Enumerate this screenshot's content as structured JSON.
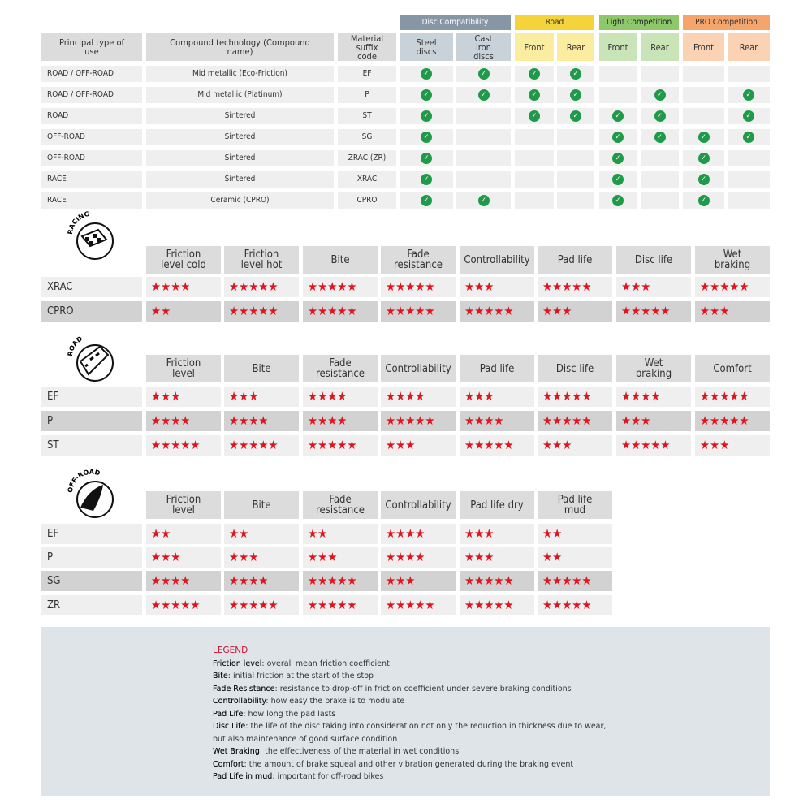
{
  "colors": {
    "check": "#1f9a4a",
    "star": "#e0141e",
    "disc": "#8796a5",
    "disc_sub": "#c9d1d9",
    "road": "#f5d33a",
    "road_sub": "#fbeda0",
    "light": "#8ec86a",
    "light_sub": "#c9e4b7",
    "pro": "#f5a56c",
    "pro_sub": "#fbd2b4"
  },
  "compat": {
    "groups": [
      "Disc Compatibility",
      "Road",
      "Light Competition",
      "PRO Competition"
    ],
    "headers": [
      "Principal type of use",
      "Compound technology (Compound name)",
      "Material suffix code",
      "Steel discs",
      "Cast iron discs",
      "Front",
      "Rear",
      "Front",
      "Rear",
      "Front",
      "Rear"
    ],
    "rows": [
      {
        "use": "ROAD / OFF-ROAD",
        "compound": "Mid metallic (Eco-Friction)",
        "code": "EF",
        "checks": [
          1,
          1,
          1,
          1,
          0,
          0,
          0,
          0
        ]
      },
      {
        "use": "ROAD / OFF-ROAD",
        "compound": "Mid metallic (Platinum)",
        "code": "P",
        "checks": [
          1,
          1,
          1,
          1,
          0,
          1,
          0,
          1
        ]
      },
      {
        "use": "ROAD",
        "compound": "Sintered",
        "code": "ST",
        "checks": [
          1,
          0,
          1,
          1,
          1,
          1,
          0,
          1
        ]
      },
      {
        "use": "OFF-ROAD",
        "compound": "Sintered",
        "code": "SG",
        "checks": [
          1,
          0,
          0,
          0,
          1,
          1,
          1,
          1
        ]
      },
      {
        "use": "OFF-ROAD",
        "compound": "Sintered",
        "code": "ZRAC (ZR)",
        "checks": [
          1,
          0,
          0,
          0,
          1,
          0,
          1,
          0
        ]
      },
      {
        "use": "RACE",
        "compound": "Sintered",
        "code": "XRAC",
        "checks": [
          1,
          0,
          0,
          0,
          1,
          0,
          1,
          0
        ]
      },
      {
        "use": "RACE",
        "compound": "Ceramic (CPRO)",
        "code": "CPRO",
        "checks": [
          1,
          1,
          0,
          0,
          1,
          0,
          1,
          0
        ]
      }
    ]
  },
  "ratings": [
    {
      "icon_label": "RACING",
      "icon": "checkered-flag-icon",
      "columns": [
        "Friction level cold",
        "Friction level hot",
        "Bite",
        "Fade resistance",
        "Controllability",
        "Pad life",
        "Disc life",
        "Wet braking"
      ],
      "rows": [
        {
          "name": "XRAC",
          "highlight": false,
          "stars": [
            4,
            5,
            5,
            5,
            3,
            5,
            3,
            5
          ]
        },
        {
          "name": "CPRO",
          "highlight": true,
          "stars": [
            2,
            5,
            5,
            5,
            5,
            3,
            5,
            3
          ]
        }
      ]
    },
    {
      "icon_label": "ROAD",
      "icon": "road-icon",
      "columns": [
        "Friction level",
        "Bite",
        "Fade resistance",
        "Controllability",
        "Pad life",
        "Disc life",
        "Wet braking",
        "Comfort"
      ],
      "rows": [
        {
          "name": "EF",
          "highlight": false,
          "stars": [
            3,
            3,
            4,
            4,
            3,
            5,
            4,
            5
          ]
        },
        {
          "name": "P",
          "highlight": true,
          "stars": [
            4,
            4,
            4,
            5,
            4,
            5,
            3,
            5
          ]
        },
        {
          "name": "ST",
          "highlight": false,
          "stars": [
            5,
            5,
            5,
            3,
            5,
            3,
            5,
            3
          ]
        }
      ]
    },
    {
      "icon_label": "OFF-ROAD",
      "icon": "mud-splash-icon",
      "columns": [
        "Friction level",
        "Bite",
        "Fade resistance",
        "Controllability",
        "Pad life dry",
        "Pad life mud"
      ],
      "rows": [
        {
          "name": "EF",
          "highlight": false,
          "stars": [
            2,
            2,
            2,
            4,
            3,
            2
          ]
        },
        {
          "name": "P",
          "highlight": false,
          "stars": [
            3,
            3,
            3,
            4,
            3,
            2
          ]
        },
        {
          "name": "SG",
          "highlight": true,
          "stars": [
            4,
            4,
            5,
            3,
            5,
            5
          ]
        },
        {
          "name": "ZR",
          "highlight": false,
          "stars": [
            5,
            5,
            5,
            5,
            5,
            5
          ]
        }
      ]
    }
  ],
  "legend": {
    "title": "LEGEND",
    "items": [
      {
        "term": "Friction level",
        "desc": ": overall mean friction coefficient"
      },
      {
        "term": "Bite",
        "desc": ": initial friction at the start of the stop"
      },
      {
        "term": "Fade Resistance",
        "desc": ": resistance to drop-off in friction coefficient under severe braking conditions"
      },
      {
        "term": "Controllability",
        "desc": ": how easy the brake is to modulate"
      },
      {
        "term": "Pad Life",
        "desc": ": how long the pad lasts"
      },
      {
        "term": "Disc Life",
        "desc": ": the life of the disc taking into consideration not only the reduction in thickness due to wear,"
      },
      {
        "term": "",
        "desc": "but also maintenance of good surface condition"
      },
      {
        "term": "Wet Braking",
        "desc": ": the effectiveness of the material in wet conditions"
      },
      {
        "term": "Comfort",
        "desc": ": the amount of brake squeal and other vibration generated during the braking event"
      },
      {
        "term": "Pad Life in mud",
        "desc": ": important for off-road bikes"
      }
    ]
  }
}
